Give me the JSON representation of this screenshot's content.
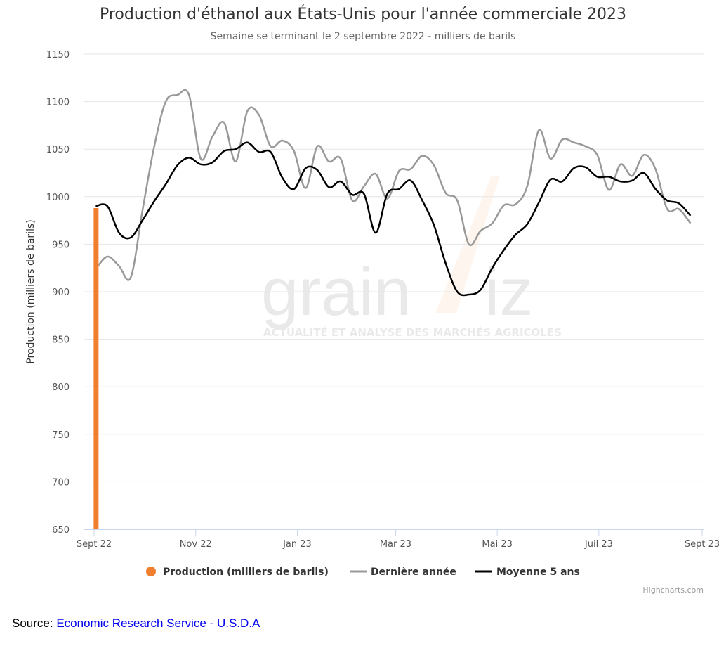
{
  "chart_data": {
    "type": "line",
    "title": "Production d'éthanol aux États-Unis pour l'année commerciale 2023",
    "subtitle": "Semaine se terminant le 2 septembre 2022 - milliers de barils",
    "ylabel": "Production (milliers de barils)",
    "xlabel": "",
    "ylim": [
      650,
      1150
    ],
    "yticks": [
      650,
      700,
      750,
      800,
      850,
      900,
      950,
      1000,
      1050,
      1100,
      1150
    ],
    "xlim": [
      "2022-09-01",
      "2023-09-01"
    ],
    "xticks": [
      {
        "date": "2022-09-01",
        "label": "Sept 22"
      },
      {
        "date": "2022-11-01",
        "label": "Nov 22"
      },
      {
        "date": "2023-01-01",
        "label": "Jan 23"
      },
      {
        "date": "2023-03-01",
        "label": "Mar 23"
      },
      {
        "date": "2023-05-01",
        "label": "Mai 23"
      },
      {
        "date": "2023-07-01",
        "label": "Juil 23"
      },
      {
        "date": "2023-09-01",
        "label": "Sept 23"
      }
    ],
    "grid": true,
    "legend_position": "bottom",
    "x": [
      "2022-09-02",
      "2022-09-09",
      "2022-09-16",
      "2022-09-23",
      "2022-09-30",
      "2022-10-07",
      "2022-10-14",
      "2022-10-21",
      "2022-10-28",
      "2022-11-04",
      "2022-11-11",
      "2022-11-18",
      "2022-11-25",
      "2022-12-02",
      "2022-12-09",
      "2022-12-16",
      "2022-12-23",
      "2022-12-30",
      "2023-01-06",
      "2023-01-13",
      "2023-01-20",
      "2023-01-27",
      "2023-02-03",
      "2023-02-10",
      "2023-02-17",
      "2023-02-24",
      "2023-03-03",
      "2023-03-10",
      "2023-03-17",
      "2023-03-24",
      "2023-03-31",
      "2023-04-07",
      "2023-04-14",
      "2023-04-21",
      "2023-04-28",
      "2023-05-05",
      "2023-05-12",
      "2023-05-19",
      "2023-05-26",
      "2023-06-02",
      "2023-06-09",
      "2023-06-16",
      "2023-06-23",
      "2023-06-30",
      "2023-07-07",
      "2023-07-14",
      "2023-07-21",
      "2023-07-28",
      "2023-08-04",
      "2023-08-11",
      "2023-08-18",
      "2023-08-25"
    ],
    "series": [
      {
        "name": "Production (milliers de barils)",
        "kind": "column",
        "color": "#f08030",
        "points": [
          {
            "x": "2022-09-02",
            "y": 988
          }
        ]
      },
      {
        "name": "Dernière année",
        "kind": "spline",
        "color": "#999999",
        "values": [
          924,
          937,
          927,
          915,
          985,
          1052,
          1100,
          1107,
          1107,
          1040,
          1063,
          1078,
          1037,
          1090,
          1086,
          1053,
          1059,
          1048,
          1009,
          1053,
          1037,
          1040,
          996,
          1011,
          1024,
          998,
          1027,
          1029,
          1043,
          1033,
          1004,
          996,
          950,
          964,
          972,
          991,
          992,
          1011,
          1070,
          1040,
          1060,
          1057,
          1053,
          1044,
          1007,
          1034,
          1022,
          1044,
          1029,
          987,
          987,
          972
        ]
      },
      {
        "name": "Moyenne 5 ans",
        "kind": "spline",
        "color": "#000000",
        "values": [
          990,
          990,
          962,
          957,
          975,
          995,
          1013,
          1033,
          1041,
          1034,
          1036,
          1048,
          1050,
          1057,
          1047,
          1047,
          1020,
          1008,
          1030,
          1028,
          1010,
          1016,
          1002,
          1003,
          962,
          1003,
          1008,
          1017,
          996,
          970,
          930,
          900,
          897,
          902,
          925,
          944,
          960,
          971,
          994,
          1018,
          1016,
          1030,
          1031,
          1021,
          1021,
          1016,
          1017,
          1025,
          1008,
          996,
          993,
          980
        ]
      }
    ],
    "watermark": {
      "brand": "grainViz",
      "tagline": "ACTUALITÉ ET ANALYSE DES MARCHÉS AGRICOLES"
    },
    "credits": "Highcharts.com"
  },
  "source": {
    "label": "Source:",
    "link_text": "Economic Research Service - U.S.D.A"
  }
}
